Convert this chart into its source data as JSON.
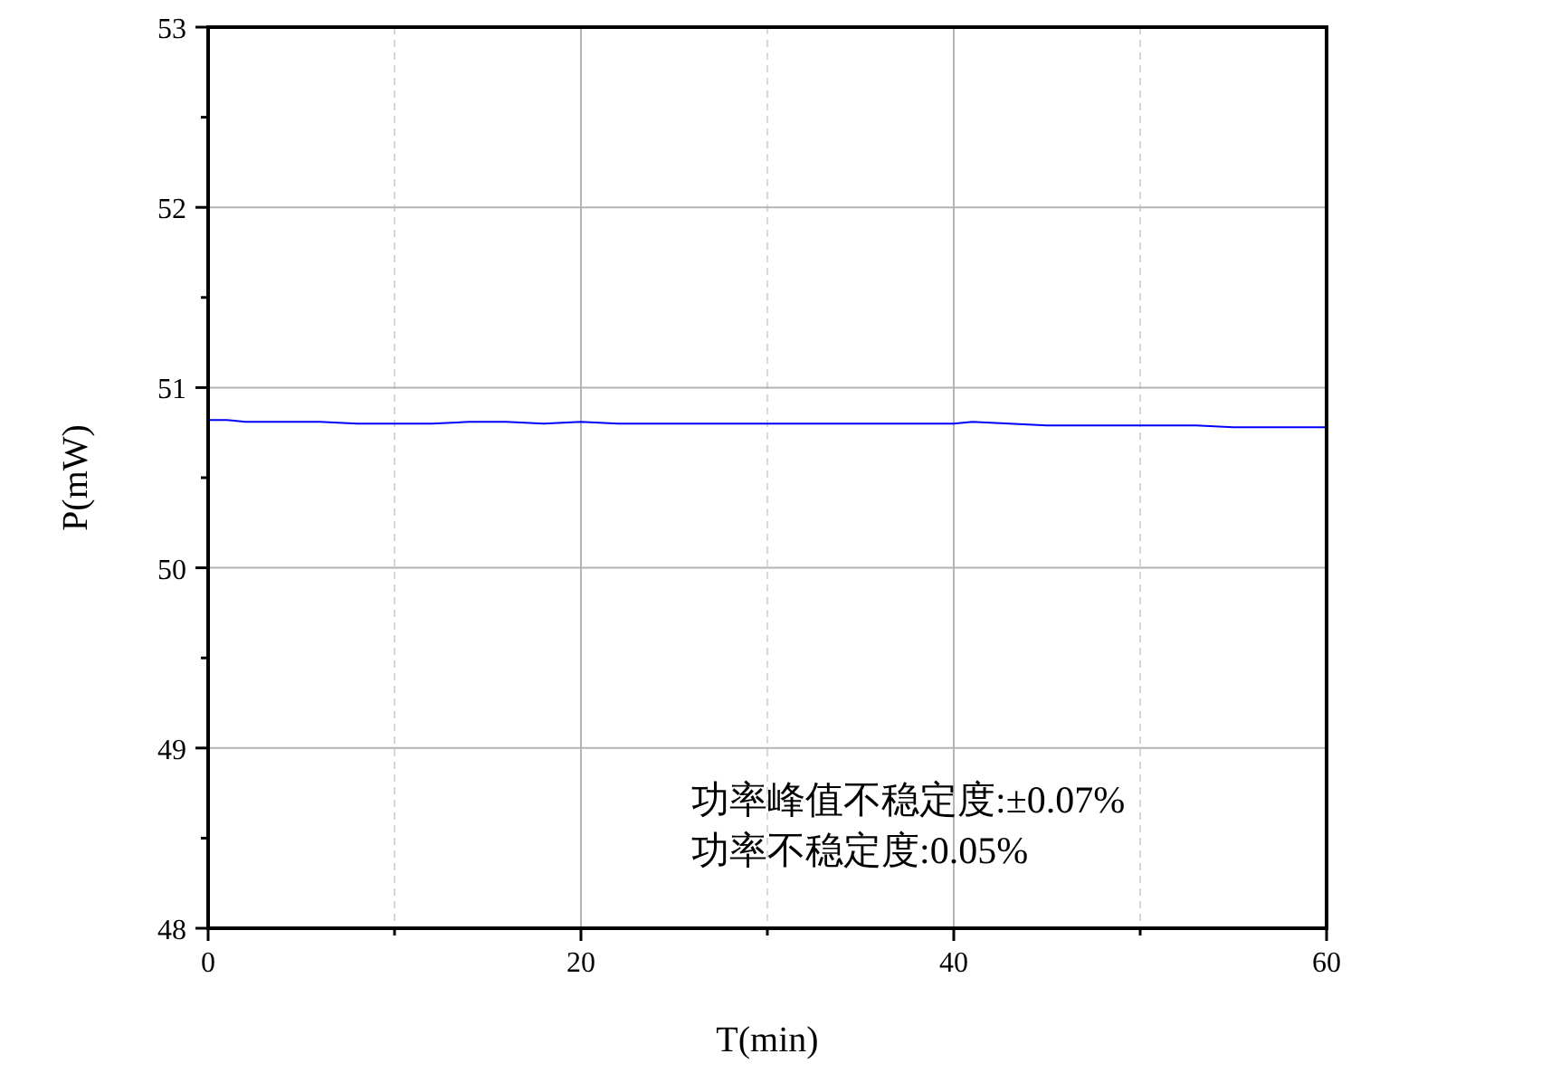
{
  "chart_data": {
    "type": "line",
    "xlabel": "T(min)",
    "ylabel": "P(mW)",
    "x": [
      0,
      1,
      2,
      4,
      6,
      8,
      10,
      12,
      14,
      16,
      18,
      20,
      22,
      24,
      26,
      28,
      30,
      32,
      34,
      36,
      38,
      40,
      41,
      43,
      45,
      47,
      49,
      51,
      53,
      55,
      57,
      59,
      60
    ],
    "series": [
      {
        "color": "#0000ff",
        "values": [
          50.82,
          50.82,
          50.81,
          50.81,
          50.81,
          50.8,
          50.8,
          50.8,
          50.81,
          50.81,
          50.8,
          50.81,
          50.8,
          50.8,
          50.8,
          50.8,
          50.8,
          50.8,
          50.8,
          50.8,
          50.8,
          50.8,
          50.81,
          50.8,
          50.79,
          50.79,
          50.79,
          50.79,
          50.79,
          50.78,
          50.78,
          50.78,
          50.78
        ]
      }
    ],
    "xlim": [
      0,
      60
    ],
    "ylim": [
      48,
      53
    ],
    "xticks": [
      0,
      {
        "value": 10,
        "label": null
      },
      20,
      {
        "value": 30,
        "label": null
      },
      40,
      {
        "value": 50,
        "label": null
      },
      60
    ],
    "yticks": [
      48,
      {
        "value": 48.5,
        "label": null
      },
      49,
      {
        "value": 49.5,
        "label": null
      },
      50,
      {
        "value": 50.5,
        "label": null
      },
      51,
      {
        "value": 51.5,
        "label": null
      },
      52,
      {
        "value": 52.5,
        "label": null
      },
      53
    ],
    "grid": true,
    "marker": "none",
    "line_style": "solid",
    "annotations": [
      "功率峰值不稳定度:±0.07%",
      "功率不稳定度:0.05%"
    ]
  }
}
